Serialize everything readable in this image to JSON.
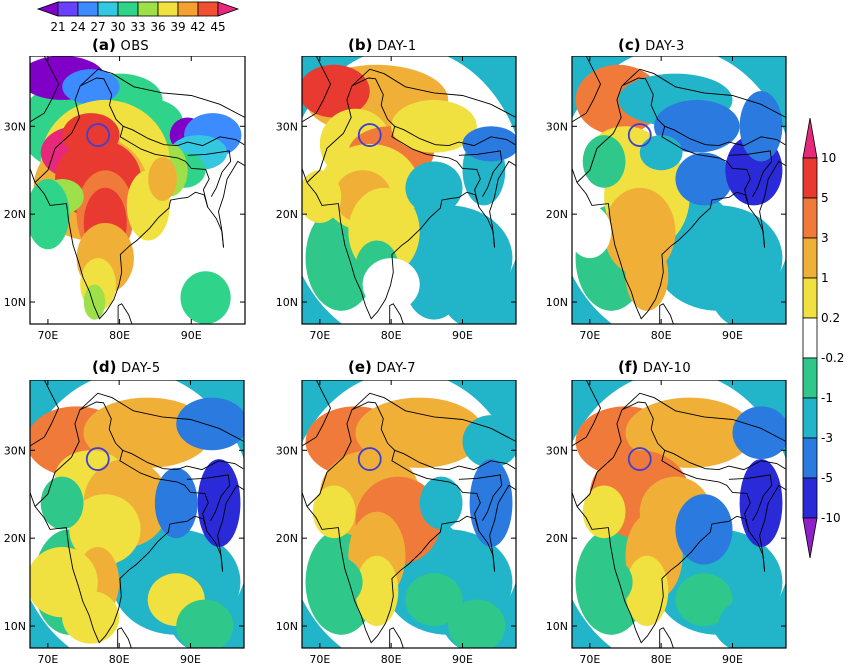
{
  "figure": {
    "panels": [
      {
        "id": "a",
        "tag": "(a)",
        "name": "OBS"
      },
      {
        "id": "b",
        "tag": "(b)",
        "name": "DAY-1"
      },
      {
        "id": "c",
        "tag": "(c)",
        "name": "DAY-3"
      },
      {
        "id": "d",
        "tag": "(d)",
        "name": "DAY-5"
      },
      {
        "id": "e",
        "tag": "(e)",
        "name": "DAY-7"
      },
      {
        "id": "f",
        "tag": "(f)",
        "name": "DAY-10"
      }
    ],
    "lat_ticks": [
      "10N",
      "20N",
      "30N"
    ],
    "lon_ticks": [
      "70E",
      "80E",
      "90E"
    ],
    "obs_colorbar": {
      "labels": [
        "21",
        "24",
        "27",
        "30",
        "33",
        "36",
        "39",
        "42",
        "45"
      ],
      "colors": [
        "#8000c8",
        "#6a40ff",
        "#3c8cff",
        "#33c8e0",
        "#2fd38a",
        "#9ee04a",
        "#f0e040",
        "#f5a030",
        "#f05030",
        "#e8287a"
      ]
    },
    "diff_colorbar": {
      "labels": [
        "10",
        "5",
        "3",
        "1",
        "0.2",
        "-0.2",
        "-1",
        "-3",
        "-5",
        "-10"
      ],
      "colors": [
        "#e8287a",
        "#e83a30",
        "#f07a3a",
        "#f0b038",
        "#f0e040",
        "#ffffff",
        "#2fc88a",
        "#22b4c8",
        "#2a7ae0",
        "#2a2ad8",
        "#9020c8"
      ]
    },
    "marker": {
      "lon": 77,
      "lat": 29,
      "color": "#4040d0"
    }
  }
}
